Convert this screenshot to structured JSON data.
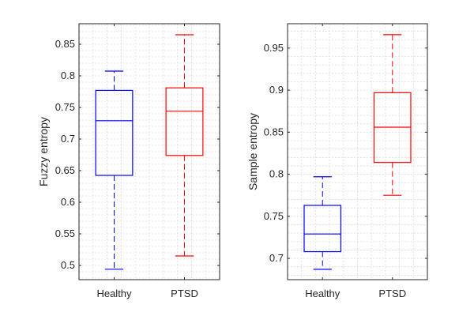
{
  "chart_data": [
    {
      "type": "box",
      "title": "",
      "xlabel": "",
      "ylabel": "Fuzzy entropy",
      "categories": [
        "Healthy",
        "PTSD"
      ],
      "ylim": [
        0.4775,
        0.8825
      ],
      "yticks": [
        0.5,
        0.55,
        0.6,
        0.65,
        0.7,
        0.75,
        0.8,
        0.85
      ],
      "ytick_labels": [
        "0.5",
        "0.55",
        "0.6",
        "0.65",
        "0.7",
        "0.75",
        "0.8",
        "0.85"
      ],
      "grid": true,
      "series": [
        {
          "name": "Healthy",
          "color": "#0000ff",
          "whisker_low": 0.494,
          "q1": 0.6425,
          "median": 0.729,
          "q3": 0.777,
          "whisker_high": 0.8075
        },
        {
          "name": "PTSD",
          "color": "#ff0000",
          "whisker_low": 0.515,
          "q1": 0.674,
          "median": 0.744,
          "q3": 0.781,
          "whisker_high": 0.865
        }
      ]
    },
    {
      "type": "box",
      "title": "",
      "xlabel": "",
      "ylabel": "Sample entropy",
      "categories": [
        "Healthy",
        "PTSD"
      ],
      "ylim": [
        0.6747,
        0.979
      ],
      "yticks": [
        0.7,
        0.75,
        0.8,
        0.85,
        0.9,
        0.95
      ],
      "ytick_labels": [
        "0.7",
        "0.75",
        "0.8",
        "0.85",
        "0.9",
        "0.95"
      ],
      "grid": true,
      "series": [
        {
          "name": "Healthy",
          "color": "#0000ff",
          "whisker_low": 0.687,
          "q1": 0.708,
          "median": 0.729,
          "q3": 0.763,
          "whisker_high": 0.797
        },
        {
          "name": "PTSD",
          "color": "#ff0000",
          "whisker_low": 0.775,
          "q1": 0.814,
          "median": 0.856,
          "q3": 0.897,
          "whisker_high": 0.966
        }
      ]
    }
  ]
}
